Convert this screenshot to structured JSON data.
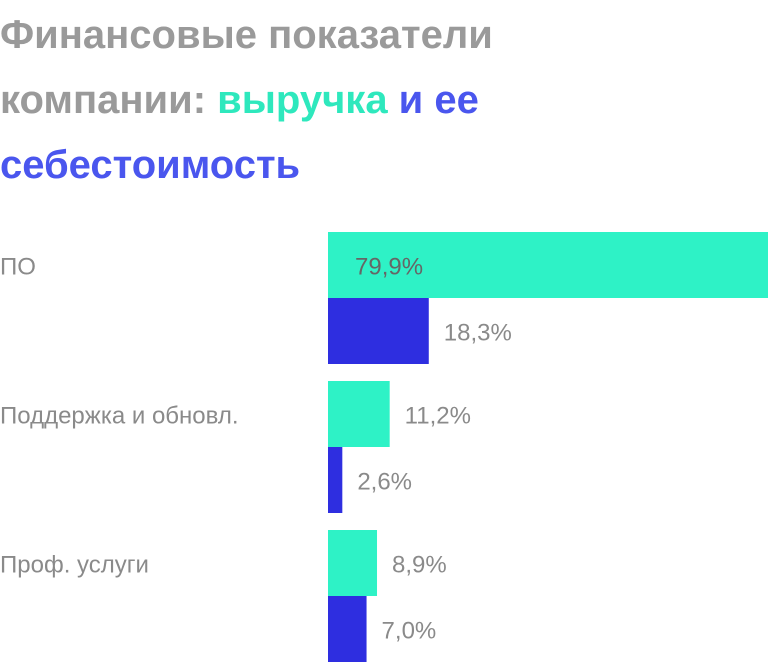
{
  "chart_data": {
    "type": "bar",
    "title": [
      [
        {
          "text": "Финансовые показатели",
          "color": "#9a9a9a"
        }
      ],
      [
        {
          "text": "компании: ",
          "color": "#9a9a9a"
        },
        {
          "text": "выручка",
          "color": "#2ee8bd"
        },
        {
          "text": " и ее",
          "color": "#4a56ee"
        }
      ],
      [
        {
          "text": "себестоимость",
          "color": "#4a56ee"
        }
      ]
    ],
    "categories": [
      "ПО",
      "Поддержка и обновл.",
      "Проф. услуги"
    ],
    "series": [
      {
        "color": "#2ef2c6",
        "values": [
          79.9,
          11.2,
          8.9
        ],
        "value_labels": [
          "79,9%",
          "11,2%",
          "8,9%"
        ]
      },
      {
        "color": "#2e2ee0",
        "values": [
          18.3,
          2.6,
          7.0
        ],
        "value_labels": [
          "18,3%",
          "2,6%",
          "7,0%"
        ]
      }
    ]
  }
}
